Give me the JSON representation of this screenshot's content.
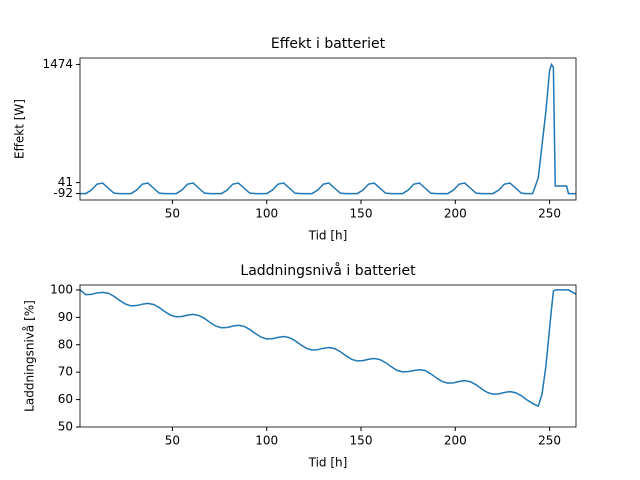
{
  "chart_data": [
    {
      "type": "line",
      "title": "Effekt i batteriet",
      "xlabel": "Tid [h]",
      "ylabel": "Effekt [W]",
      "x": [
        1,
        4,
        7,
        10,
        13,
        16,
        19,
        22,
        25,
        28,
        31,
        34,
        37,
        40,
        43,
        46,
        49,
        52,
        55,
        58,
        61,
        64,
        67,
        70,
        73,
        76,
        79,
        82,
        85,
        88,
        91,
        94,
        97,
        100,
        103,
        106,
        109,
        112,
        115,
        118,
        121,
        124,
        127,
        130,
        133,
        136,
        139,
        142,
        145,
        148,
        151,
        154,
        157,
        160,
        163,
        166,
        169,
        172,
        175,
        178,
        181,
        184,
        187,
        190,
        193,
        196,
        199,
        202,
        205,
        208,
        211,
        214,
        217,
        220,
        223,
        226,
        229,
        232,
        235,
        238,
        241,
        244,
        246,
        248,
        250,
        251,
        252,
        253,
        256,
        259,
        260,
        264
      ],
      "series": [
        {
          "name": "Effekt",
          "color": "#1f77b4",
          "values": [
            -92,
            -92,
            -51,
            22,
            36,
            -26,
            -87,
            -92,
            -92,
            -92,
            -51,
            22,
            36,
            -26,
            -87,
            -92,
            -92,
            -92,
            -51,
            22,
            36,
            -26,
            -87,
            -92,
            -92,
            -92,
            -51,
            22,
            36,
            -26,
            -87,
            -92,
            -92,
            -92,
            -51,
            22,
            36,
            -26,
            -87,
            -92,
            -92,
            -92,
            -51,
            22,
            36,
            -26,
            -87,
            -92,
            -92,
            -92,
            -51,
            22,
            36,
            -26,
            -87,
            -92,
            -92,
            -92,
            -51,
            22,
            36,
            -26,
            -87,
            -92,
            -92,
            -92,
            -51,
            22,
            36,
            -26,
            -87,
            -92,
            -92,
            -92,
            -51,
            22,
            36,
            -26,
            -87,
            -92,
            -92,
            100,
            500,
            900,
            1400,
            1474,
            1440,
            0,
            0,
            0,
            -92,
            -92
          ]
        }
      ],
      "xlim": [
        1,
        264
      ],
      "xticks": [
        50,
        100,
        150,
        200,
        250
      ],
      "ylim": [
        -170,
        1552
      ],
      "yticks": [
        -92,
        41,
        1474
      ]
    },
    {
      "type": "line",
      "title": "Laddningsnivå i batteriet",
      "xlabel": "Tid [h]",
      "ylabel": "Laddningsnivå [%]",
      "x": [
        1,
        4,
        7,
        10,
        13,
        16,
        19,
        22,
        25,
        28,
        31,
        34,
        37,
        40,
        43,
        46,
        49,
        52,
        55,
        58,
        61,
        64,
        67,
        70,
        73,
        76,
        79,
        82,
        85,
        88,
        91,
        94,
        97,
        100,
        103,
        106,
        109,
        112,
        115,
        118,
        121,
        124,
        127,
        130,
        133,
        136,
        139,
        142,
        145,
        148,
        151,
        154,
        157,
        160,
        163,
        166,
        169,
        172,
        175,
        178,
        181,
        184,
        187,
        190,
        193,
        196,
        199,
        202,
        205,
        208,
        211,
        214,
        217,
        220,
        223,
        226,
        229,
        232,
        235,
        238,
        241,
        244,
        246,
        248,
        250,
        251,
        252,
        253,
        256,
        259,
        260,
        264
      ],
      "series": [
        {
          "name": "Laddningsnivå",
          "color": "#1f77b4",
          "values": [
            100,
            98.3,
            98.4,
            98.9,
            99.1,
            98.8,
            97.7,
            96.2,
            94.9,
            94.2,
            94.3,
            94.8,
            95.1,
            94.7,
            93.6,
            92.1,
            90.8,
            90.2,
            90.3,
            90.8,
            91.1,
            90.7,
            89.6,
            88.1,
            86.8,
            86.2,
            86.3,
            86.8,
            87.1,
            86.7,
            85.6,
            84.1,
            82.8,
            82.1,
            82.2,
            82.7,
            83.0,
            82.6,
            81.5,
            80.0,
            78.7,
            78.1,
            78.2,
            78.7,
            79.0,
            78.6,
            77.5,
            76.0,
            74.7,
            74.1,
            74.2,
            74.7,
            75.0,
            74.6,
            73.5,
            72.0,
            70.7,
            70.1,
            70.2,
            70.6,
            70.9,
            70.6,
            69.4,
            67.9,
            66.6,
            66.0,
            66.1,
            66.6,
            66.9,
            66.5,
            65.4,
            63.9,
            62.6,
            62.0,
            62.1,
            62.6,
            62.9,
            62.5,
            61.4,
            59.9,
            58.6,
            57.6,
            62,
            72,
            86,
            93,
            99.5,
            100,
            100,
            100,
            100,
            98.5
          ]
        }
      ],
      "xlim": [
        1,
        264
      ],
      "xticks": [
        50,
        100,
        150,
        200,
        250
      ],
      "ylim": [
        50,
        101.8
      ],
      "yticks": [
        50,
        60,
        70,
        80,
        90,
        100
      ]
    }
  ]
}
